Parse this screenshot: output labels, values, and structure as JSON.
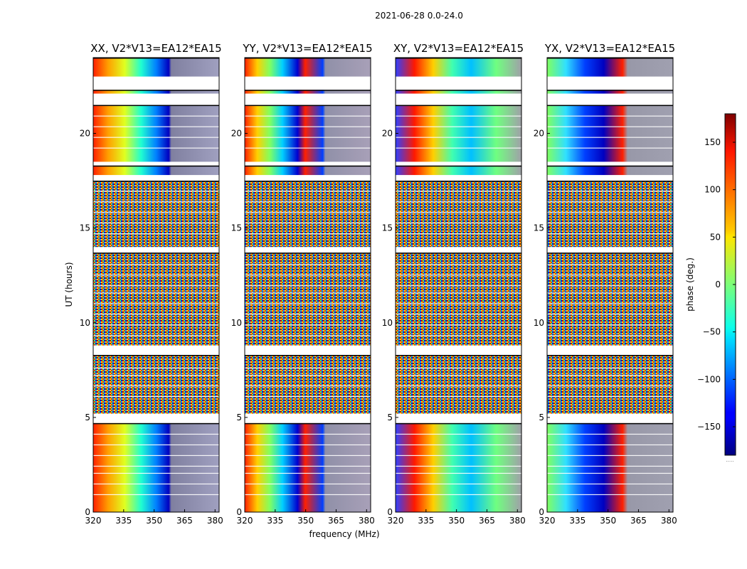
{
  "chart_data": {
    "type": "heatmap",
    "suptitle": "2021-06-28 0.0-24.0",
    "xlabel": "frequency (MHz)",
    "ylabel": "UT (hours)",
    "xlim": [
      320,
      382
    ],
    "ylim": [
      0,
      24
    ],
    "xticks": [
      320,
      335,
      350,
      365,
      380
    ],
    "yticks": [
      0,
      5,
      10,
      15,
      20
    ],
    "colormap": "jet",
    "colorbar": {
      "label": "phase (deg.)",
      "range": [
        -180,
        180
      ],
      "ticks": [
        150,
        100,
        50,
        0,
        -50,
        -100,
        -150
      ],
      "tick_labels": [
        "150",
        "100",
        "50",
        "0",
        "−50",
        "−100",
        "−150"
      ],
      "footer": "....."
    },
    "panels": [
      {
        "title": "XX, V2*V13=EA12*EA15",
        "polarization": "XX"
      },
      {
        "title": "YY, V2*V13=EA12*EA15",
        "polarization": "YY"
      },
      {
        "title": "XY, V2*V13=EA12*EA15",
        "polarization": "XY"
      },
      {
        "title": "YX, V2*V13=EA12*EA15",
        "polarization": "YX"
      }
    ],
    "data_segments_hours": [
      [
        0,
        4.7
      ],
      [
        5.2,
        8.3
      ],
      [
        8.8,
        13.7
      ],
      [
        14.0,
        17.5
      ],
      [
        17.8,
        18.3
      ],
      [
        18.5,
        21.5
      ],
      [
        22.1,
        22.3
      ],
      [
        23.0,
        24.0
      ]
    ],
    "flagged_gap_hours": [
      [
        21.5,
        22.0
      ],
      [
        22.4,
        22.9
      ]
    ]
  }
}
